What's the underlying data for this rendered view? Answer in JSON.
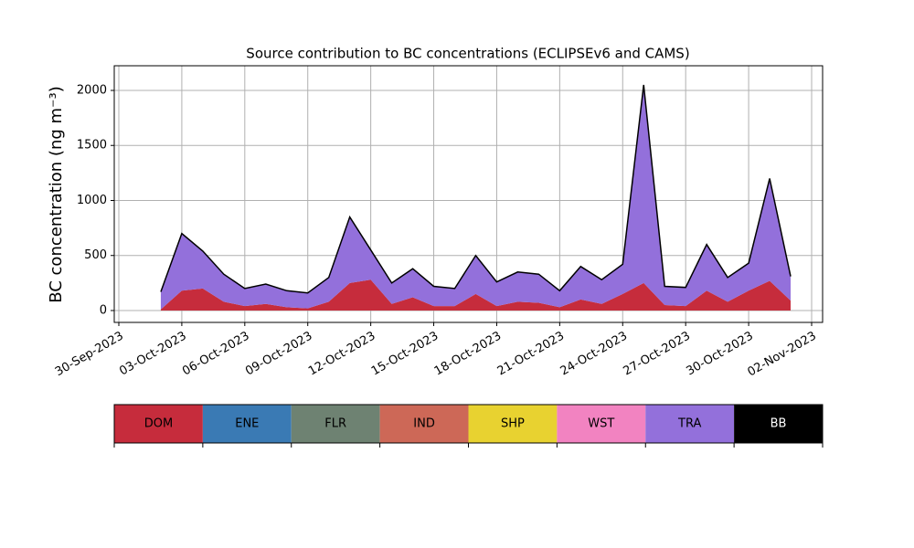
{
  "chart_data": {
    "type": "stacked-area",
    "title": "Source contribution to BC concentrations (ECLIPSEv6 and CAMS)",
    "y_label": "BC concentration (ng m⁻³)",
    "x": [
      "2023-10-02",
      "2023-10-03",
      "2023-10-04",
      "2023-10-05",
      "2023-10-06",
      "2023-10-07",
      "2023-10-08",
      "2023-10-09",
      "2023-10-10",
      "2023-10-11",
      "2023-10-12",
      "2023-10-13",
      "2023-10-14",
      "2023-10-15",
      "2023-10-16",
      "2023-10-17",
      "2023-10-18",
      "2023-10-19",
      "2023-10-20",
      "2023-10-21",
      "2023-10-22",
      "2023-10-23",
      "2023-10-24",
      "2023-10-25",
      "2023-10-26",
      "2023-10-27",
      "2023-10-28",
      "2023-10-29",
      "2023-10-30",
      "2023-10-31",
      "2023-11-01"
    ],
    "series": [
      {
        "name": "DOM",
        "color": "#c62c3c",
        "values": [
          10,
          180,
          200,
          80,
          40,
          60,
          30,
          20,
          80,
          250,
          280,
          60,
          120,
          40,
          40,
          150,
          40,
          80,
          70,
          30,
          100,
          60,
          150,
          250,
          50,
          40,
          180,
          80,
          180,
          270,
          90
        ]
      },
      {
        "name": "TRA",
        "color": "#9370db",
        "values": [
          160,
          520,
          340,
          250,
          160,
          180,
          150,
          140,
          220,
          600,
          270,
          190,
          260,
          180,
          160,
          350,
          220,
          270,
          260,
          150,
          300,
          220,
          270,
          1800,
          170,
          170,
          420,
          220,
          250,
          930,
          220
        ]
      }
    ],
    "outline_color": "#000000",
    "legend": [
      {
        "name": "DOM",
        "color": "#c62c3c"
      },
      {
        "name": "ENE",
        "color": "#3a7ab4"
      },
      {
        "name": "FLR",
        "color": "#6e8272"
      },
      {
        "name": "IND",
        "color": "#cd6857"
      },
      {
        "name": "SHP",
        "color": "#e8d230"
      },
      {
        "name": "WST",
        "color": "#f283c1"
      },
      {
        "name": "TRA",
        "color": "#9370db"
      },
      {
        "name": "BB",
        "color": "#000000"
      }
    ],
    "xlim": [
      "2023-09-30",
      "2023-11-02"
    ],
    "xticks": [
      {
        "value": "2023-09-30",
        "label": "30-Sep-2023"
      },
      {
        "value": "2023-10-03",
        "label": "03-Oct-2023"
      },
      {
        "value": "2023-10-06",
        "label": "06-Oct-2023"
      },
      {
        "value": "2023-10-09",
        "label": "09-Oct-2023"
      },
      {
        "value": "2023-10-12",
        "label": "12-Oct-2023"
      },
      {
        "value": "2023-10-15",
        "label": "15-Oct-2023"
      },
      {
        "value": "2023-10-18",
        "label": "18-Oct-2023"
      },
      {
        "value": "2023-10-21",
        "label": "21-Oct-2023"
      },
      {
        "value": "2023-10-24",
        "label": "24-Oct-2023"
      },
      {
        "value": "2023-10-27",
        "label": "27-Oct-2023"
      },
      {
        "value": "2023-10-30",
        "label": "30-Oct-2023"
      },
      {
        "value": "2023-11-02",
        "label": "02-Nov-2023"
      }
    ],
    "ylim": [
      -108,
      2224
    ],
    "yticks": [
      0,
      500,
      1000,
      1500,
      2000
    ],
    "grid": true
  }
}
